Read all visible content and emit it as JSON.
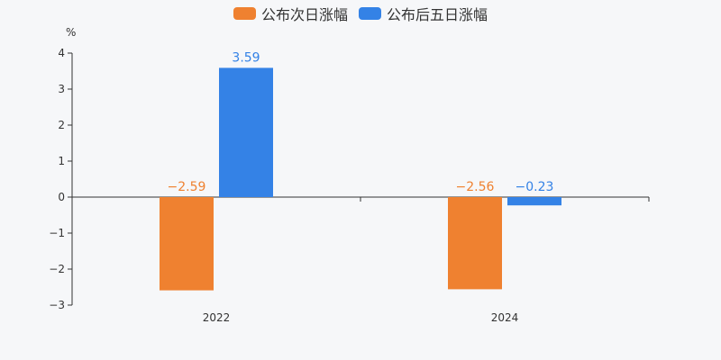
{
  "chart_data": {
    "type": "bar",
    "categories": [
      "2022",
      "2024"
    ],
    "series": [
      {
        "name": "公布次日涨幅",
        "values": [
          -2.59,
          -2.56
        ],
        "labels": [
          "−2.59",
          "−2.56"
        ],
        "color": "#ef8130"
      },
      {
        "name": "公布后五日涨幅",
        "values": [
          3.59,
          -0.23
        ],
        "labels": [
          "3.59",
          "−0.23"
        ],
        "color": "#3482e6"
      }
    ],
    "ylabel": "%",
    "ylim": [
      -3,
      4
    ],
    "yticks": [
      {
        "value": 4,
        "label": "4"
      },
      {
        "value": 3,
        "label": "3"
      },
      {
        "value": 2,
        "label": "2"
      },
      {
        "value": 1,
        "label": "1"
      },
      {
        "value": 0,
        "label": "0"
      },
      {
        "value": -1,
        "label": "−1"
      },
      {
        "value": -2,
        "label": "−2"
      },
      {
        "value": -3,
        "label": "−3"
      }
    ],
    "grid": false,
    "legend_position": "top-center"
  }
}
